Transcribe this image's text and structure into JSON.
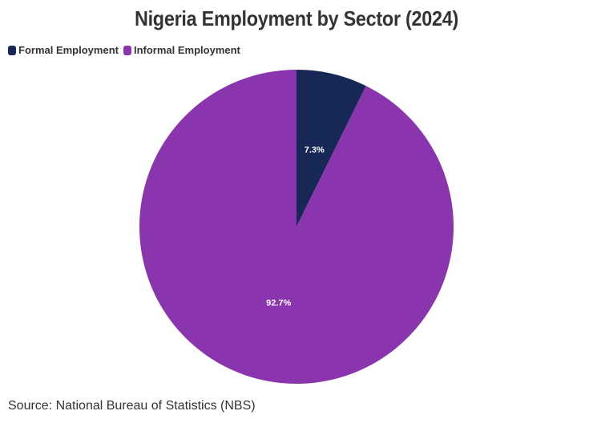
{
  "chart_data": {
    "type": "pie",
    "title": "Nigeria Employment by Sector (2024)",
    "categories": [
      "Formal Employment",
      "Informal Employment"
    ],
    "values": [
      7.3,
      92.7
    ],
    "data_labels": [
      "7.3%",
      "92.7%"
    ],
    "colors": [
      "#172856",
      "#8a35ad"
    ],
    "legend_position": "top-left"
  },
  "source": "Source: National Bureau of Statistics (NBS)"
}
